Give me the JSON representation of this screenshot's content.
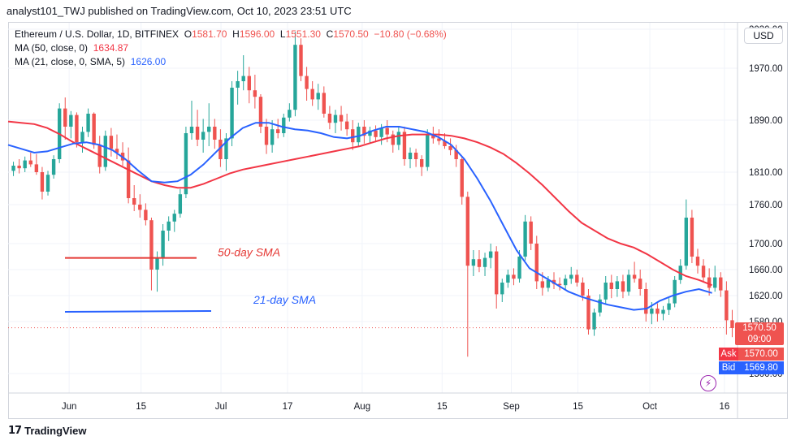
{
  "caption": "analyst101_TWJ published on TradingView.com, Oct 10, 2023 23:51 UTC",
  "legend": {
    "symbol": "Ethereum / U.S. Dollar, 1D, BITFINEX",
    "open_label": "O",
    "open": "1581.70",
    "high_label": "H",
    "high": "1596.00",
    "low_label": "L",
    "low": "1551.30",
    "close_label": "C",
    "close": "1570.50",
    "change": "−10.80 (−0.68%)",
    "ma50_label": "MA (50, close, 0)",
    "ma50_value": "1634.87",
    "ma21_label": "MA (21, close, 0, SMA, 5)",
    "ma21_value": "1626.00"
  },
  "currency_button": "USD",
  "price_tag": {
    "price": "1570.50",
    "countdown": "09:00"
  },
  "ask": {
    "label": "Ask",
    "value": "1570.00"
  },
  "bid": {
    "label": "Bid",
    "value": "1569.80"
  },
  "brand": "TradingView",
  "colors": {
    "up": "#26a69a",
    "down": "#ef5350",
    "ma50": "#f23645",
    "ma21": "#2962ff",
    "last_price_line": "#ef5350",
    "annotation_text_red": "#e53935",
    "annotation_text_blue": "#2962ff"
  },
  "chart_data": {
    "type": "candlestick",
    "title": "Ethereum / U.S. Dollar, 1D, BITFINEX",
    "x_ticks": [
      "Jun",
      "15",
      "Jul",
      "17",
      "Aug",
      "15",
      "Sep",
      "15",
      "Oct",
      "16"
    ],
    "y_ticks": [
      "2030.00",
      "1970.00",
      "1890.00",
      "1810.00",
      "1760.00",
      "1700.00",
      "1660.00",
      "1620.00",
      "1580.00",
      "1500.00"
    ],
    "y_range": [
      1470,
      2040
    ],
    "last_price": 1570.5,
    "annotations": [
      {
        "text": "50-day SMA",
        "color": "#e53935",
        "line_level": 1678
      },
      {
        "text": "21-day SMA",
        "color": "#2962ff",
        "line_level": 1595
      }
    ],
    "candles": [
      [
        1812,
        1826,
        1804,
        1820
      ],
      [
        1820,
        1830,
        1808,
        1816
      ],
      [
        1816,
        1834,
        1810,
        1828
      ],
      [
        1828,
        1840,
        1818,
        1822
      ],
      [
        1822,
        1838,
        1806,
        1810
      ],
      [
        1810,
        1818,
        1768,
        1780
      ],
      [
        1780,
        1812,
        1774,
        1806
      ],
      [
        1806,
        1836,
        1800,
        1830
      ],
      [
        1830,
        1916,
        1824,
        1908
      ],
      [
        1908,
        1925,
        1860,
        1880
      ],
      [
        1880,
        1904,
        1862,
        1898
      ],
      [
        1898,
        1902,
        1848,
        1856
      ],
      [
        1856,
        1880,
        1840,
        1872
      ],
      [
        1872,
        1908,
        1864,
        1900
      ],
      [
        1900,
        1902,
        1846,
        1852
      ],
      [
        1852,
        1866,
        1808,
        1818
      ],
      [
        1818,
        1874,
        1812,
        1866
      ],
      [
        1866,
        1878,
        1834,
        1846
      ],
      [
        1846,
        1868,
        1830,
        1840
      ],
      [
        1840,
        1856,
        1820,
        1828
      ],
      [
        1828,
        1848,
        1762,
        1770
      ],
      [
        1770,
        1790,
        1750,
        1760
      ],
      [
        1760,
        1776,
        1740,
        1752
      ],
      [
        1752,
        1762,
        1728,
        1736
      ],
      [
        1736,
        1740,
        1628,
        1660
      ],
      [
        1660,
        1688,
        1626,
        1678
      ],
      [
        1678,
        1730,
        1666,
        1720
      ],
      [
        1720,
        1742,
        1704,
        1734
      ],
      [
        1734,
        1752,
        1718,
        1746
      ],
      [
        1746,
        1784,
        1740,
        1776
      ],
      [
        1776,
        1880,
        1770,
        1870
      ],
      [
        1870,
        1920,
        1860,
        1880
      ],
      [
        1880,
        1906,
        1850,
        1860
      ],
      [
        1860,
        1892,
        1840,
        1872
      ],
      [
        1872,
        1916,
        1850,
        1880
      ],
      [
        1880,
        1892,
        1846,
        1860
      ],
      [
        1860,
        1876,
        1818,
        1830
      ],
      [
        1830,
        1870,
        1812,
        1862
      ],
      [
        1862,
        1950,
        1850,
        1940
      ],
      [
        1940,
        1966,
        1914,
        1950
      ],
      [
        1950,
        1990,
        1936,
        1958
      ],
      [
        1958,
        1972,
        1916,
        1936
      ],
      [
        1936,
        1960,
        1908,
        1926
      ],
      [
        1926,
        1930,
        1870,
        1880
      ],
      [
        1880,
        1892,
        1838,
        1852
      ],
      [
        1852,
        1890,
        1840,
        1876
      ],
      [
        1876,
        1892,
        1862,
        1870
      ],
      [
        1870,
        1900,
        1864,
        1894
      ],
      [
        1894,
        1916,
        1888,
        1906
      ],
      [
        1906,
        2026,
        1896,
        2006
      ],
      [
        2006,
        2016,
        1950,
        1958
      ],
      [
        1958,
        1972,
        1920,
        1938
      ],
      [
        1938,
        1950,
        1912,
        1922
      ],
      [
        1922,
        1946,
        1906,
        1932
      ],
      [
        1932,
        1942,
        1894,
        1900
      ],
      [
        1900,
        1912,
        1876,
        1886
      ],
      [
        1886,
        1906,
        1870,
        1898
      ],
      [
        1898,
        1912,
        1874,
        1888
      ],
      [
        1888,
        1900,
        1866,
        1876
      ],
      [
        1876,
        1890,
        1844,
        1856
      ],
      [
        1856,
        1886,
        1850,
        1880
      ],
      [
        1880,
        1890,
        1854,
        1866
      ],
      [
        1866,
        1880,
        1854,
        1874
      ],
      [
        1874,
        1882,
        1856,
        1864
      ],
      [
        1864,
        1884,
        1852,
        1878
      ],
      [
        1878,
        1890,
        1856,
        1868
      ],
      [
        1868,
        1874,
        1840,
        1852
      ],
      [
        1852,
        1880,
        1844,
        1872
      ],
      [
        1872,
        1880,
        1820,
        1830
      ],
      [
        1830,
        1848,
        1816,
        1840
      ],
      [
        1840,
        1846,
        1818,
        1830
      ],
      [
        1830,
        1836,
        1804,
        1818
      ],
      [
        1818,
        1876,
        1812,
        1868
      ],
      [
        1868,
        1880,
        1854,
        1862
      ],
      [
        1862,
        1876,
        1852,
        1858
      ],
      [
        1858,
        1870,
        1846,
        1850
      ],
      [
        1850,
        1862,
        1836,
        1844
      ],
      [
        1844,
        1852,
        1818,
        1830
      ],
      [
        1830,
        1834,
        1760,
        1772
      ],
      [
        1772,
        1780,
        1526,
        1666
      ],
      [
        1666,
        1690,
        1650,
        1676
      ],
      [
        1676,
        1690,
        1656,
        1664
      ],
      [
        1664,
        1686,
        1650,
        1678
      ],
      [
        1678,
        1700,
        1662,
        1688
      ],
      [
        1688,
        1696,
        1600,
        1622
      ],
      [
        1622,
        1646,
        1610,
        1640
      ],
      [
        1640,
        1660,
        1632,
        1652
      ],
      [
        1652,
        1662,
        1636,
        1646
      ],
      [
        1646,
        1690,
        1640,
        1680
      ],
      [
        1680,
        1744,
        1674,
        1734
      ],
      [
        1734,
        1742,
        1690,
        1700
      ],
      [
        1700,
        1712,
        1630,
        1642
      ],
      [
        1642,
        1656,
        1620,
        1632
      ],
      [
        1632,
        1650,
        1626,
        1644
      ],
      [
        1644,
        1656,
        1630,
        1638
      ],
      [
        1638,
        1648,
        1628,
        1636
      ],
      [
        1636,
        1652,
        1628,
        1646
      ],
      [
        1646,
        1664,
        1638,
        1652
      ],
      [
        1652,
        1660,
        1634,
        1640
      ],
      [
        1640,
        1648,
        1612,
        1620
      ],
      [
        1620,
        1630,
        1560,
        1568
      ],
      [
        1568,
        1600,
        1558,
        1594
      ],
      [
        1594,
        1622,
        1588,
        1614
      ],
      [
        1614,
        1650,
        1606,
        1640
      ],
      [
        1640,
        1652,
        1616,
        1630
      ],
      [
        1630,
        1650,
        1618,
        1642
      ],
      [
        1642,
        1652,
        1616,
        1626
      ],
      [
        1626,
        1660,
        1620,
        1652
      ],
      [
        1652,
        1672,
        1640,
        1646
      ],
      [
        1646,
        1660,
        1620,
        1630
      ],
      [
        1630,
        1640,
        1580,
        1592
      ],
      [
        1592,
        1610,
        1576,
        1600
      ],
      [
        1600,
        1608,
        1580,
        1592
      ],
      [
        1592,
        1604,
        1582,
        1598
      ],
      [
        1598,
        1616,
        1590,
        1608
      ],
      [
        1608,
        1650,
        1602,
        1644
      ],
      [
        1644,
        1676,
        1638,
        1666
      ],
      [
        1666,
        1768,
        1660,
        1740
      ],
      [
        1740,
        1752,
        1670,
        1680
      ],
      [
        1680,
        1692,
        1654,
        1666
      ],
      [
        1666,
        1676,
        1640,
        1648
      ],
      [
        1648,
        1662,
        1620,
        1632
      ],
      [
        1632,
        1666,
        1626,
        1648
      ],
      [
        1648,
        1656,
        1618,
        1628
      ],
      [
        1628,
        1642,
        1560,
        1582
      ],
      [
        1582,
        1598,
        1556,
        1570
      ]
    ],
    "ma50": [
      1888,
      1886,
      1884,
      1878,
      1868,
      1856,
      1846,
      1836,
      1826,
      1816,
      1806,
      1796,
      1790,
      1786,
      1786,
      1792,
      1800,
      1808,
      1814,
      1818,
      1822,
      1826,
      1830,
      1834,
      1838,
      1842,
      1846,
      1850,
      1856,
      1862,
      1866,
      1868,
      1868,
      1868,
      1866,
      1862,
      1856,
      1848,
      1838,
      1824,
      1808,
      1790,
      1770,
      1750,
      1732,
      1720,
      1708,
      1700,
      1694,
      1684,
      1672,
      1660,
      1650,
      1644,
      1636
    ],
    "ma21": [
      1852,
      1846,
      1840,
      1842,
      1848,
      1854,
      1856,
      1852,
      1844,
      1830,
      1812,
      1796,
      1794,
      1796,
      1806,
      1822,
      1842,
      1862,
      1878,
      1886,
      1886,
      1880,
      1876,
      1874,
      1870,
      1864,
      1862,
      1866,
      1874,
      1880,
      1880,
      1876,
      1872,
      1864,
      1852,
      1830,
      1800,
      1766,
      1728,
      1690,
      1662,
      1650,
      1638,
      1626,
      1618,
      1612,
      1606,
      1602,
      1598,
      1600,
      1612,
      1620,
      1626,
      1630,
      1624
    ]
  }
}
